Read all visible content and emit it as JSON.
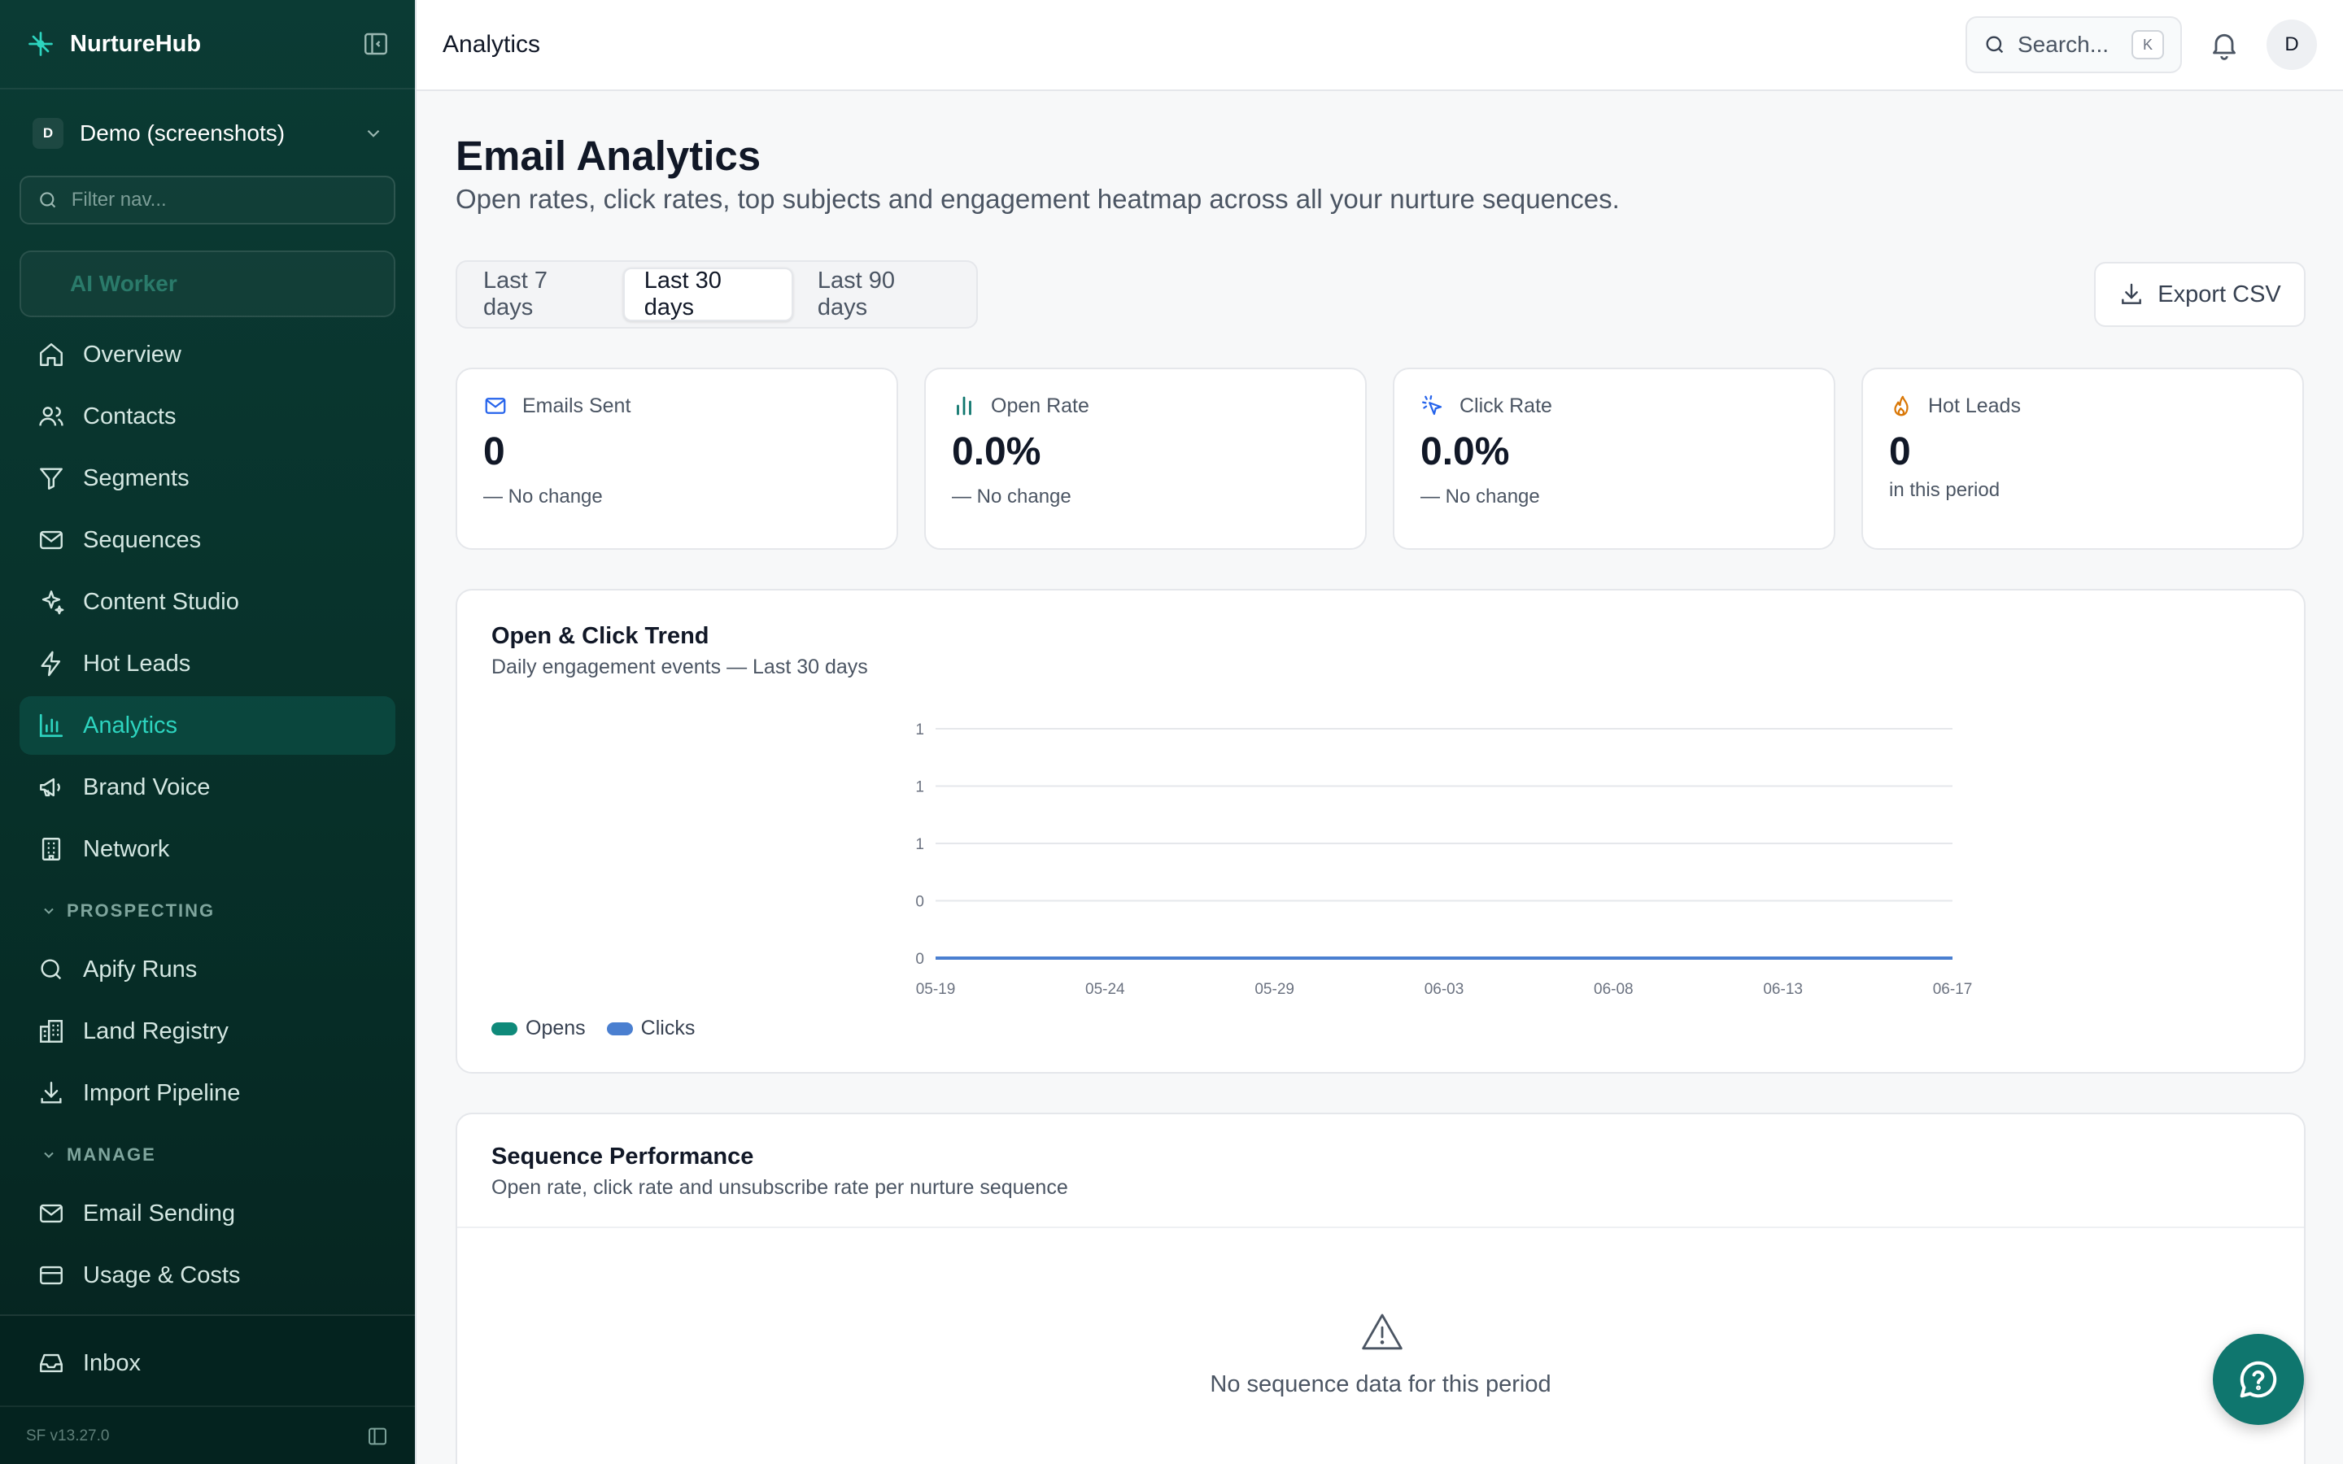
{
  "app": {
    "name": "NurtureHub"
  },
  "workspace": {
    "initial": "D",
    "name": "Demo (screenshots)"
  },
  "nav_filter": {
    "placeholder": "Filter nav..."
  },
  "ai_worker": {
    "label": "AI Worker"
  },
  "nav": {
    "main": [
      {
        "label": "Overview",
        "icon": "home-icon",
        "active": false
      },
      {
        "label": "Contacts",
        "icon": "users-icon",
        "active": false
      },
      {
        "label": "Segments",
        "icon": "filter-icon",
        "active": false
      },
      {
        "label": "Sequences",
        "icon": "mail-icon",
        "active": false
      },
      {
        "label": "Content Studio",
        "icon": "sparkles-icon",
        "active": false
      },
      {
        "label": "Hot Leads",
        "icon": "zap-icon",
        "active": false
      },
      {
        "label": "Analytics",
        "icon": "bar-chart-icon",
        "active": true
      },
      {
        "label": "Brand Voice",
        "icon": "megaphone-icon",
        "active": false
      },
      {
        "label": "Network",
        "icon": "building-icon",
        "active": false
      }
    ],
    "prospecting": {
      "title": "PROSPECTING",
      "items": [
        {
          "label": "Apify Runs",
          "icon": "search-icon"
        },
        {
          "label": "Land Registry",
          "icon": "building-office-icon"
        },
        {
          "label": "Import Pipeline",
          "icon": "download-icon"
        }
      ]
    },
    "manage": {
      "title": "MANAGE",
      "items": [
        {
          "label": "Email Sending",
          "icon": "mail-icon"
        },
        {
          "label": "Usage & Costs",
          "icon": "credit-card-icon"
        }
      ]
    },
    "bottom": {
      "label": "Inbox",
      "icon": "inbox-icon"
    }
  },
  "version": "SF v13.27.0",
  "topbar": {
    "title": "Analytics",
    "search_label": "Search...",
    "search_kbd": "K",
    "user_initial": "D"
  },
  "page": {
    "title": "Email Analytics",
    "subtitle": "Open rates, click rates, top subjects and engagement heatmap across all your nurture sequences."
  },
  "ranges": [
    {
      "label": "Last 7 days",
      "active": false
    },
    {
      "label": "Last 30 days",
      "active": true
    },
    {
      "label": "Last 90 days",
      "active": false
    }
  ],
  "export_label": "Export CSV",
  "stats": [
    {
      "label": "Emails Sent",
      "value": "0",
      "foot": "— No change",
      "icon": "mail-icon",
      "color": "#2563eb"
    },
    {
      "label": "Open Rate",
      "value": "0.0%",
      "foot": "— No change",
      "icon": "bar-chart-icon",
      "color": "#0f766e"
    },
    {
      "label": "Click Rate",
      "value": "0.0%",
      "foot": "— No change",
      "icon": "cursor-click-icon",
      "color": "#2563eb"
    },
    {
      "label": "Hot Leads",
      "value": "0",
      "foot": "in this period",
      "icon": "flame-icon",
      "color": "#d97706"
    }
  ],
  "trend": {
    "title": "Open & Click Trend",
    "subtitle": "Daily engagement events — Last 30 days"
  },
  "chart_data": {
    "type": "line",
    "x": [
      "05-19",
      "05-24",
      "05-29",
      "06-03",
      "06-08",
      "06-13",
      "06-17"
    ],
    "y_ticks": [
      "0",
      "0",
      "1",
      "1",
      "1"
    ],
    "ylim": [
      0,
      1
    ],
    "series": [
      {
        "name": "Opens",
        "color": "#0f8a7a",
        "values": [
          0,
          0,
          0,
          0,
          0,
          0,
          0
        ]
      },
      {
        "name": "Clicks",
        "color": "#4a7fd0",
        "values": [
          0,
          0,
          0,
          0,
          0,
          0,
          0
        ]
      }
    ],
    "grid": true,
    "legend": "bottom-left"
  },
  "sequence": {
    "title": "Sequence Performance",
    "subtitle": "Open rate, click rate and unsubscribe rate per nurture sequence",
    "empty": "No sequence data for this period"
  }
}
